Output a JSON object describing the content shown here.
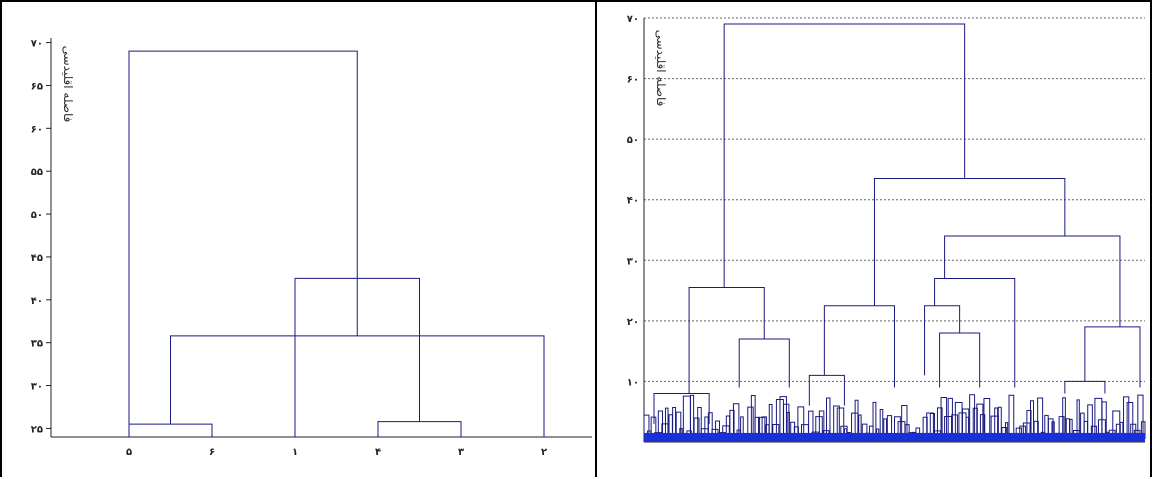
{
  "chart_data": [
    {
      "type": "dendrogram",
      "ylabel": "فاصله اقلیدسی",
      "ylim": [
        24,
        71
      ],
      "yticks": [
        25,
        30,
        35,
        40,
        45,
        50,
        55,
        60,
        65,
        70
      ],
      "ytick_labels": [
        "۲۵",
        "۳۰",
        "۳۵",
        "۴۰",
        "۴۵",
        "۵۰",
        "۵۵",
        "۶۰",
        "۶۵",
        "۷۰"
      ],
      "leaves": [
        "۵",
        "۶",
        "۱",
        "۴",
        "۳",
        "۲"
      ],
      "links": [
        {
          "left": 0,
          "right": 1,
          "height": 25.5
        },
        {
          "left": 3,
          "right": 4,
          "height": 25.8
        },
        {
          "left": 6,
          "right": 5,
          "height": 35.8
        },
        {
          "left": 2,
          "right": 7,
          "height": 42.5
        },
        {
          "left": 0,
          "right": 8,
          "height": 69.0
        }
      ]
    },
    {
      "type": "dendrogram",
      "ylabel": "فاصله اقلیدسی",
      "ylim": [
        0,
        70
      ],
      "yticks": [
        10,
        20,
        30,
        40,
        50,
        60,
        70
      ],
      "ytick_labels": [
        "۱۰",
        "۲۰",
        "۳۰",
        "۴۰",
        "۵۰",
        "۶۰",
        "۷۰"
      ],
      "grid": true,
      "clusters": [
        {
          "x": 0.05,
          "height": 25.5,
          "children": [
            0.0,
            0.13
          ],
          "child_heights": [
            8,
            17
          ]
        },
        {
          "x": 0.13,
          "height": 17,
          "children": [
            0.1,
            0.17
          ],
          "child_heights": [
            9,
            9
          ]
        },
        {
          "x": 0.28,
          "height": 22.5,
          "children": [
            0.24,
            0.34
          ],
          "child_heights": [
            11,
            9
          ]
        },
        {
          "x": 0.38,
          "height": 22.5,
          "children": [
            0.34,
            0.42
          ],
          "child_heights": [
            19,
            9
          ]
        },
        {
          "x": 0.4,
          "height": 27.5,
          "children": [
            0.35,
            0.47
          ],
          "child_heights": [
            22.5,
            27
          ]
        },
        {
          "x": 0.47,
          "height": 27,
          "children": [
            0.4,
            0.53
          ],
          "child_heights": [
            19,
            9
          ]
        },
        {
          "x": 0.66,
          "height": 34,
          "children": [
            0.47,
            0.85
          ],
          "child_heights": [
            27.5,
            19
          ]
        },
        {
          "x": 0.6,
          "height": 43,
          "children": [
            0.28,
            0.66
          ],
          "child_heights": [
            22.5,
            34
          ]
        },
        {
          "x": 0.32,
          "height": 69,
          "children": [
            0.05,
            0.6
          ],
          "child_heights": [
            25.5,
            43
          ]
        }
      ],
      "leaf_count": 500
    }
  ]
}
